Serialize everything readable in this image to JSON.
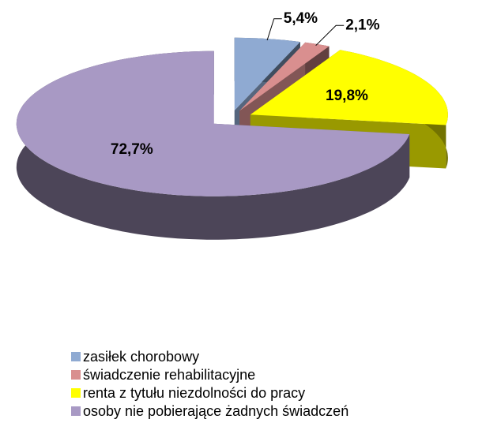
{
  "chart_data": {
    "type": "pie3d",
    "categories": [
      "zasiłek chorobowy",
      "świadczenie rehabilitacyjne",
      "renta z tytułu niezdolności do pracy",
      "osoby nie pobierające żadnych świadczeń"
    ],
    "values": [
      5.4,
      2.1,
      19.8,
      72.7
    ],
    "value_labels": [
      "5,4%",
      "2,1%",
      "19,8%",
      "72,7%"
    ],
    "colors": [
      "#8faad2",
      "#d98f8f",
      "#ffff00",
      "#a899c4"
    ],
    "legend": "bottom"
  }
}
